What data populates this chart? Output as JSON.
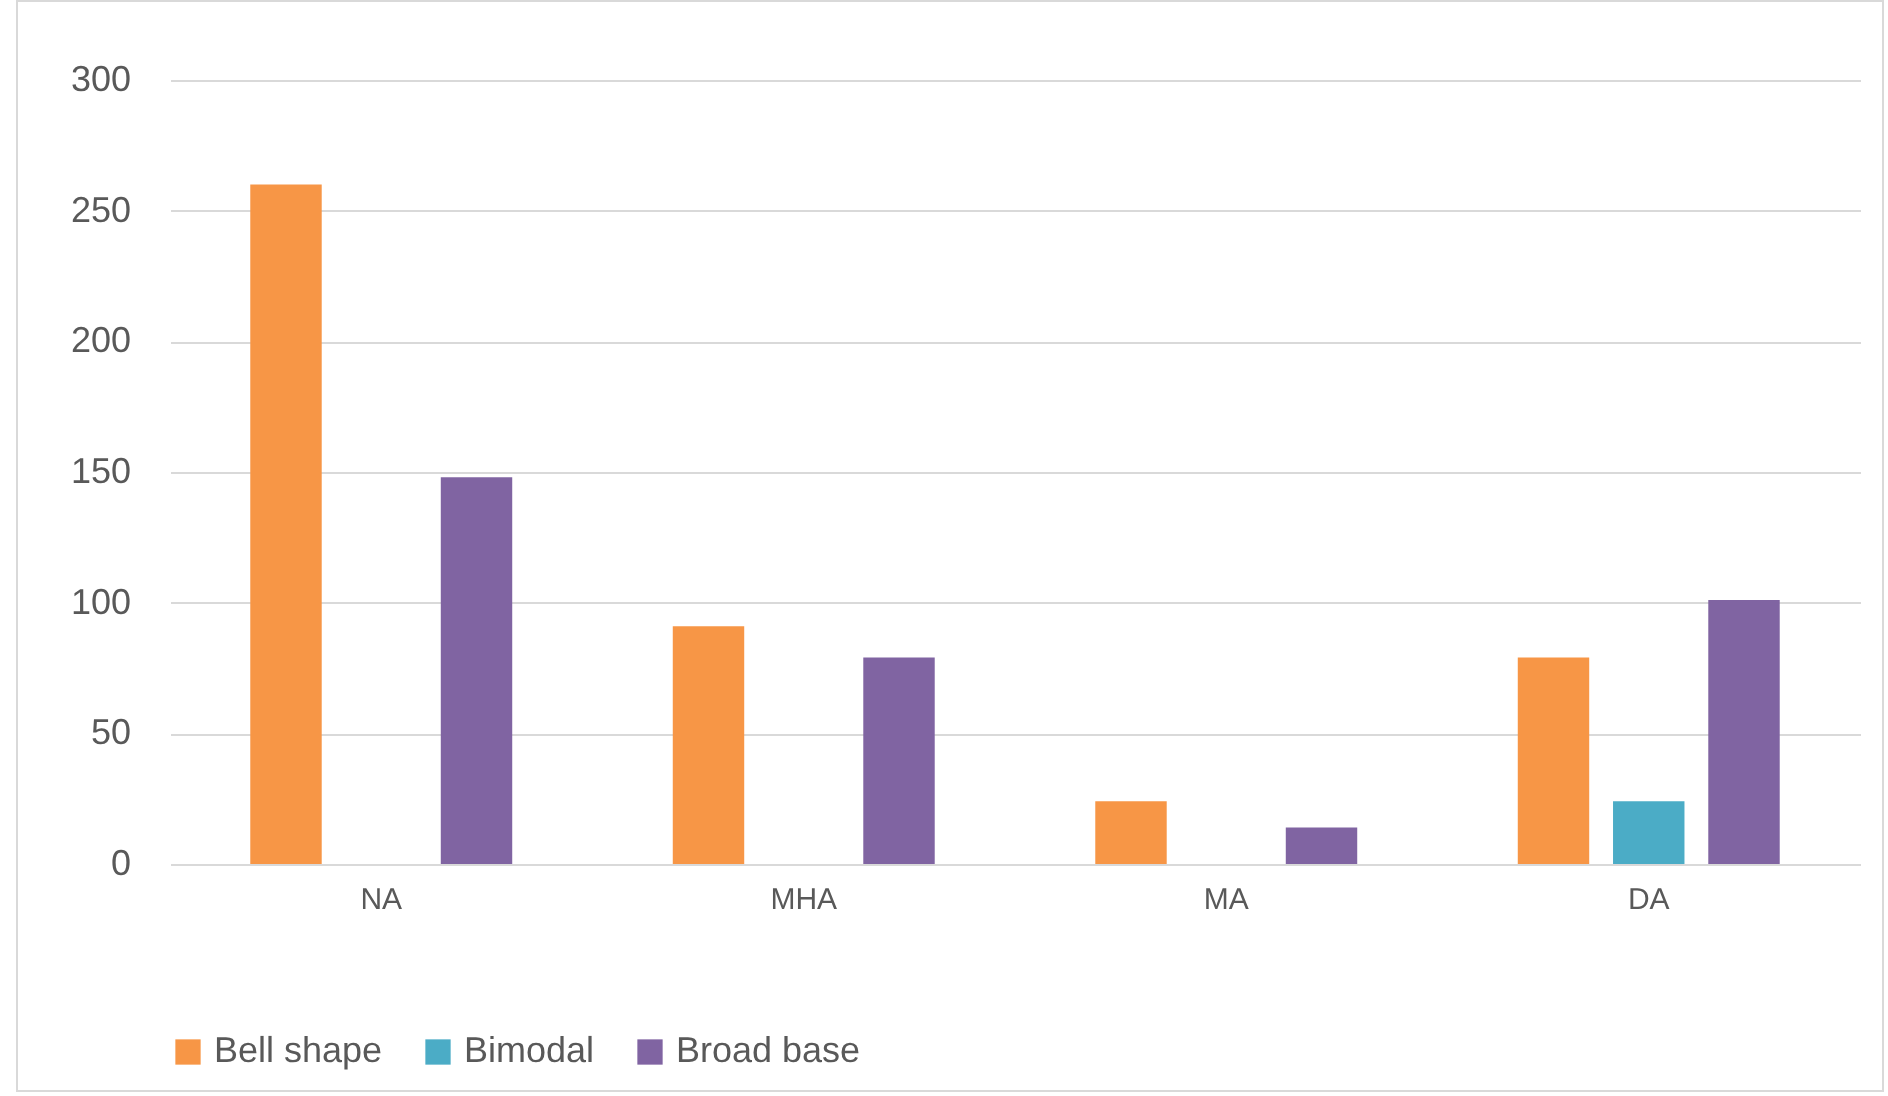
{
  "chart_data": {
    "type": "bar",
    "categories": [
      "NA",
      "MHA",
      "MA",
      "DA"
    ],
    "series": [
      {
        "name": "Bell shape",
        "color": "#f79646",
        "values": [
          260,
          91,
          24,
          79
        ]
      },
      {
        "name": "Bimodal",
        "color": "#4bacc6",
        "values": [
          0,
          0,
          0,
          24
        ]
      },
      {
        "name": "Broad base",
        "color": "#8064a2",
        "values": [
          148,
          79,
          14,
          101
        ]
      }
    ],
    "ylim": [
      0,
      300
    ],
    "yticks": [
      0,
      50,
      100,
      150,
      200,
      250,
      300
    ],
    "grid": "y",
    "legend": "bottom"
  }
}
